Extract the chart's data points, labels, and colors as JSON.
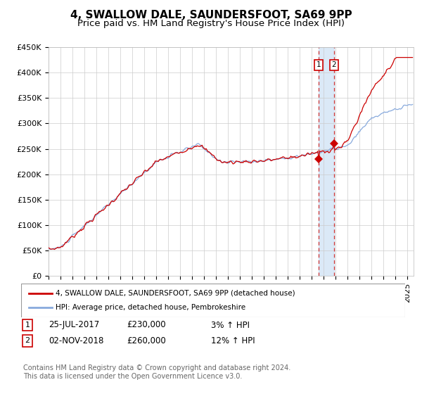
{
  "title": "4, SWALLOW DALE, SAUNDERSFOOT, SA69 9PP",
  "subtitle": "Price paid vs. HM Land Registry's House Price Index (HPI)",
  "ylabel_ticks": [
    0,
    50000,
    100000,
    150000,
    200000,
    250000,
    300000,
    350000,
    400000,
    450000
  ],
  "ylabel_labels": [
    "£0",
    "£50K",
    "£100K",
    "£150K",
    "£200K",
    "£250K",
    "£300K",
    "£350K",
    "£400K",
    "£450K"
  ],
  "ylim": [
    0,
    450000
  ],
  "xlim_start": 1995.0,
  "xlim_end": 2025.5,
  "line1_color": "#cc0000",
  "line2_color": "#88aadd",
  "line1_label": "4, SWALLOW DALE, SAUNDERSFOOT, SA69 9PP (detached house)",
  "line2_label": "HPI: Average price, detached house, Pembrokeshire",
  "ann1_x": 2017.56,
  "ann1_y": 230000,
  "ann2_x": 2018.84,
  "ann2_y": 260000,
  "ann1_date": "25-JUL-2017",
  "ann1_price": "£230,000",
  "ann1_pct": "3% ↑ HPI",
  "ann2_date": "02-NOV-2018",
  "ann2_price": "£260,000",
  "ann2_pct": "12% ↑ HPI",
  "footer": "Contains HM Land Registry data © Crown copyright and database right 2024.\nThis data is licensed under the Open Government Licence v3.0.",
  "bg_color": "#ffffff",
  "grid_color": "#cccccc",
  "title_fontsize": 11,
  "subtitle_fontsize": 9.5,
  "tick_fontsize": 8,
  "legend_fontsize": 7.5,
  "annot_fontsize": 8.5,
  "footer_fontsize": 7
}
